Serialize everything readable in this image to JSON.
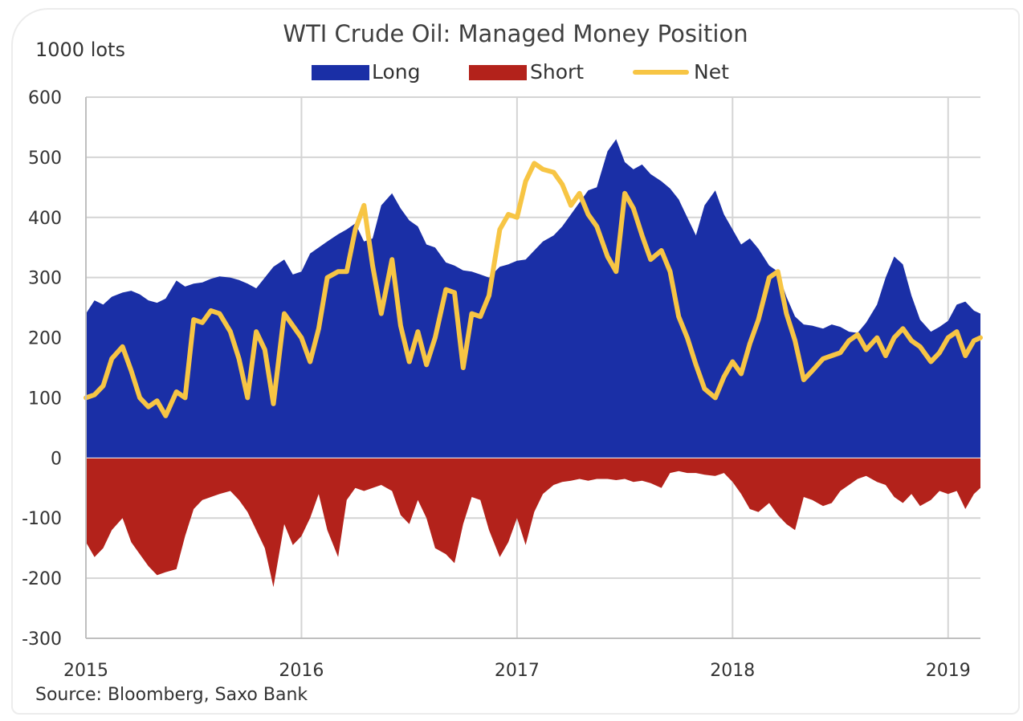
{
  "chart_data": {
    "type": "area",
    "title": "WTI Crude Oil: Managed Money Position",
    "ylabel": "1000 lots",
    "ylim": [
      -300,
      600
    ],
    "yticks": [
      -300,
      -200,
      -100,
      0,
      100,
      200,
      300,
      400,
      500,
      600
    ],
    "xticks": [
      "2015",
      "2016",
      "2017",
      "2018",
      "2019"
    ],
    "xlim": [
      2015.0,
      2019.15
    ],
    "grid": true,
    "legend_position": "top",
    "source": "Source: Bloomberg, Saxo Bank",
    "colors": {
      "long": "#1a2fa6",
      "short": "#b3221b",
      "net": "#f7c544"
    },
    "series": [
      {
        "name": "Long",
        "x": [
          2015.0,
          2015.04,
          2015.08,
          2015.12,
          2015.17,
          2015.21,
          2015.25,
          2015.29,
          2015.33,
          2015.37,
          2015.42,
          2015.46,
          2015.5,
          2015.54,
          2015.58,
          2015.62,
          2015.67,
          2015.71,
          2015.75,
          2015.79,
          2015.83,
          2015.87,
          2015.92,
          2015.96,
          2016.0,
          2016.04,
          2016.08,
          2016.12,
          2016.17,
          2016.21,
          2016.25,
          2016.29,
          2016.33,
          2016.37,
          2016.42,
          2016.46,
          2016.5,
          2016.54,
          2016.58,
          2016.62,
          2016.67,
          2016.71,
          2016.75,
          2016.79,
          2016.83,
          2016.87,
          2016.92,
          2016.96,
          2017.0,
          2017.04,
          2017.08,
          2017.12,
          2017.17,
          2017.21,
          2017.25,
          2017.29,
          2017.33,
          2017.37,
          2017.42,
          2017.46,
          2017.5,
          2017.54,
          2017.58,
          2017.62,
          2017.67,
          2017.71,
          2017.75,
          2017.79,
          2017.83,
          2017.87,
          2017.92,
          2017.96,
          2018.0,
          2018.04,
          2018.08,
          2018.12,
          2018.17,
          2018.21,
          2018.25,
          2018.29,
          2018.33,
          2018.37,
          2018.42,
          2018.46,
          2018.5,
          2018.54,
          2018.58,
          2018.62,
          2018.67,
          2018.71,
          2018.75,
          2018.79,
          2018.83,
          2018.87,
          2018.92,
          2018.96,
          2019.0,
          2019.04,
          2019.08,
          2019.12,
          2019.15
        ],
        "values": [
          240,
          262,
          255,
          268,
          275,
          278,
          272,
          262,
          258,
          265,
          295,
          285,
          290,
          292,
          298,
          302,
          300,
          296,
          290,
          282,
          300,
          318,
          330,
          305,
          310,
          340,
          350,
          360,
          372,
          380,
          390,
          360,
          365,
          420,
          440,
          415,
          395,
          385,
          355,
          350,
          325,
          320,
          312,
          310,
          305,
          300,
          318,
          322,
          328,
          330,
          345,
          360,
          370,
          385,
          405,
          425,
          445,
          450,
          510,
          530,
          492,
          480,
          488,
          472,
          460,
          448,
          430,
          400,
          370,
          420,
          445,
          405,
          380,
          355,
          365,
          348,
          320,
          310,
          268,
          235,
          222,
          220,
          215,
          222,
          218,
          210,
          208,
          225,
          255,
          300,
          335,
          322,
          270,
          230,
          210,
          218,
          228,
          255,
          260,
          245,
          240
        ]
      },
      {
        "name": "Short",
        "x": [
          2015.0,
          2015.04,
          2015.08,
          2015.12,
          2015.17,
          2015.21,
          2015.25,
          2015.29,
          2015.33,
          2015.37,
          2015.42,
          2015.46,
          2015.5,
          2015.54,
          2015.58,
          2015.62,
          2015.67,
          2015.71,
          2015.75,
          2015.79,
          2015.83,
          2015.87,
          2015.92,
          2015.96,
          2016.0,
          2016.04,
          2016.08,
          2016.12,
          2016.17,
          2016.21,
          2016.25,
          2016.29,
          2016.33,
          2016.37,
          2016.42,
          2016.46,
          2016.5,
          2016.54,
          2016.58,
          2016.62,
          2016.67,
          2016.71,
          2016.75,
          2016.79,
          2016.83,
          2016.87,
          2016.92,
          2016.96,
          2017.0,
          2017.04,
          2017.08,
          2017.12,
          2017.17,
          2017.21,
          2017.25,
          2017.29,
          2017.33,
          2017.37,
          2017.42,
          2017.46,
          2017.5,
          2017.54,
          2017.58,
          2017.62,
          2017.67,
          2017.71,
          2017.75,
          2017.79,
          2017.83,
          2017.87,
          2017.92,
          2017.96,
          2018.0,
          2018.04,
          2018.08,
          2018.12,
          2018.17,
          2018.21,
          2018.25,
          2018.29,
          2018.33,
          2018.37,
          2018.42,
          2018.46,
          2018.5,
          2018.54,
          2018.58,
          2018.62,
          2018.67,
          2018.71,
          2018.75,
          2018.79,
          2018.83,
          2018.87,
          2018.92,
          2018.96,
          2019.0,
          2019.04,
          2019.08,
          2019.12,
          2019.15
        ],
        "values": [
          -140,
          -165,
          -150,
          -120,
          -100,
          -140,
          -160,
          -180,
          -195,
          -190,
          -185,
          -130,
          -85,
          -70,
          -65,
          -60,
          -55,
          -70,
          -90,
          -120,
          -150,
          -215,
          -110,
          -145,
          -130,
          -100,
          -60,
          -120,
          -165,
          -70,
          -50,
          -55,
          -50,
          -45,
          -55,
          -95,
          -110,
          -70,
          -100,
          -150,
          -160,
          -175,
          -110,
          -65,
          -70,
          -120,
          -165,
          -140,
          -100,
          -145,
          -90,
          -60,
          -45,
          -40,
          -38,
          -35,
          -38,
          -35,
          -35,
          -37,
          -35,
          -40,
          -38,
          -42,
          -50,
          -25,
          -22,
          -25,
          -25,
          -28,
          -30,
          -25,
          -40,
          -60,
          -85,
          -90,
          -75,
          -95,
          -110,
          -120,
          -65,
          -70,
          -80,
          -75,
          -55,
          -45,
          -35,
          -30,
          -40,
          -45,
          -65,
          -75,
          -60,
          -80,
          -70,
          -55,
          -60,
          -55,
          -85,
          -60,
          -50
        ]
      },
      {
        "name": "Net",
        "x": [
          2015.0,
          2015.04,
          2015.08,
          2015.12,
          2015.17,
          2015.21,
          2015.25,
          2015.29,
          2015.33,
          2015.37,
          2015.42,
          2015.46,
          2015.5,
          2015.54,
          2015.58,
          2015.62,
          2015.67,
          2015.71,
          2015.75,
          2015.79,
          2015.83,
          2015.87,
          2015.92,
          2015.96,
          2016.0,
          2016.04,
          2016.08,
          2016.12,
          2016.17,
          2016.21,
          2016.25,
          2016.29,
          2016.33,
          2016.37,
          2016.42,
          2016.46,
          2016.5,
          2016.54,
          2016.58,
          2016.62,
          2016.67,
          2016.71,
          2016.75,
          2016.79,
          2016.83,
          2016.87,
          2016.92,
          2016.96,
          2017.0,
          2017.04,
          2017.08,
          2017.12,
          2017.17,
          2017.21,
          2017.25,
          2017.29,
          2017.33,
          2017.37,
          2017.42,
          2017.46,
          2017.5,
          2017.54,
          2017.58,
          2017.62,
          2017.67,
          2017.71,
          2017.75,
          2017.79,
          2017.83,
          2017.87,
          2017.92,
          2017.96,
          2018.0,
          2018.04,
          2018.08,
          2018.12,
          2018.17,
          2018.21,
          2018.25,
          2018.29,
          2018.33,
          2018.37,
          2018.42,
          2018.46,
          2018.5,
          2018.54,
          2018.58,
          2018.62,
          2018.67,
          2018.71,
          2018.75,
          2018.79,
          2018.83,
          2018.87,
          2018.92,
          2018.96,
          2019.0,
          2019.04,
          2019.08,
          2019.12,
          2019.15
        ],
        "values": [
          100,
          105,
          120,
          165,
          185,
          145,
          100,
          85,
          95,
          70,
          110,
          100,
          230,
          225,
          245,
          240,
          210,
          165,
          100,
          210,
          180,
          90,
          240,
          220,
          200,
          160,
          215,
          300,
          310,
          310,
          380,
          420,
          320,
          240,
          330,
          220,
          160,
          210,
          155,
          200,
          280,
          275,
          150,
          240,
          235,
          270,
          380,
          405,
          400,
          460,
          490,
          480,
          475,
          455,
          420,
          440,
          405,
          385,
          335,
          310,
          440,
          415,
          370,
          330,
          345,
          310,
          235,
          200,
          155,
          115,
          100,
          135,
          160,
          140,
          190,
          230,
          300,
          310,
          240,
          195,
          130,
          145,
          165,
          170,
          175,
          195,
          205,
          180,
          200,
          170,
          200,
          215,
          195,
          185,
          160,
          175,
          200,
          210,
          170,
          195,
          200
        ]
      }
    ]
  }
}
